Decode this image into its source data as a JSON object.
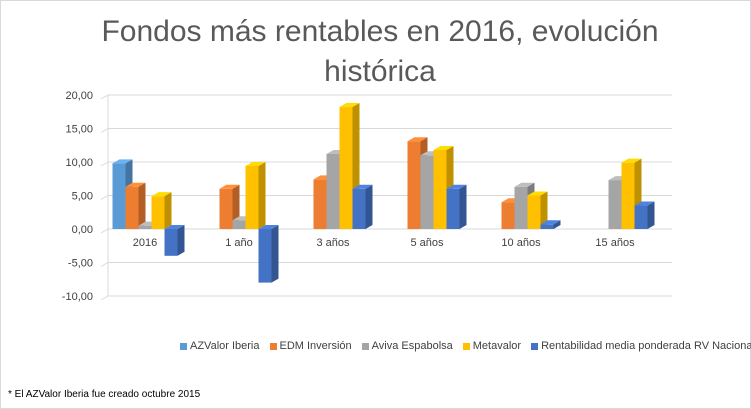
{
  "chart_data": {
    "type": "bar",
    "title": "Fondos más rentables en 2016, evolución histórica",
    "categories": [
      "2016",
      "1 año",
      "3 años",
      "5 años",
      "10 años",
      "15 años"
    ],
    "y_ticks": [
      "20,00",
      "15,00",
      "10,00",
      "5,00",
      "0,00",
      "-5,00",
      "-10,00"
    ],
    "ylim": [
      -10,
      20
    ],
    "series": [
      {
        "name": "AZValor Iberia",
        "color": "#5b9bd5",
        "values": [
          9.8,
          null,
          null,
          null,
          null,
          null
        ]
      },
      {
        "name": "EDM Inversión",
        "color": "#ed7d31",
        "values": [
          6.3,
          6.0,
          7.4,
          13.1,
          4.0,
          null
        ]
      },
      {
        "name": "Aviva Espabolsa",
        "color": "#a5a5a5",
        "values": [
          0.5,
          1.3,
          11.2,
          11.0,
          6.3,
          7.3
        ]
      },
      {
        "name": "Metavalor",
        "color": "#ffc000",
        "values": [
          4.9,
          9.4,
          18.2,
          11.8,
          5.0,
          9.9
        ]
      },
      {
        "name": "Rentabilidad media ponderada RV Nacional",
        "color": "#4472c4",
        "values": [
          -4.0,
          -8.0,
          6.0,
          6.0,
          0.7,
          3.5
        ]
      }
    ]
  },
  "footnote": "* El AZValor Iberia fue creado octubre 2015"
}
